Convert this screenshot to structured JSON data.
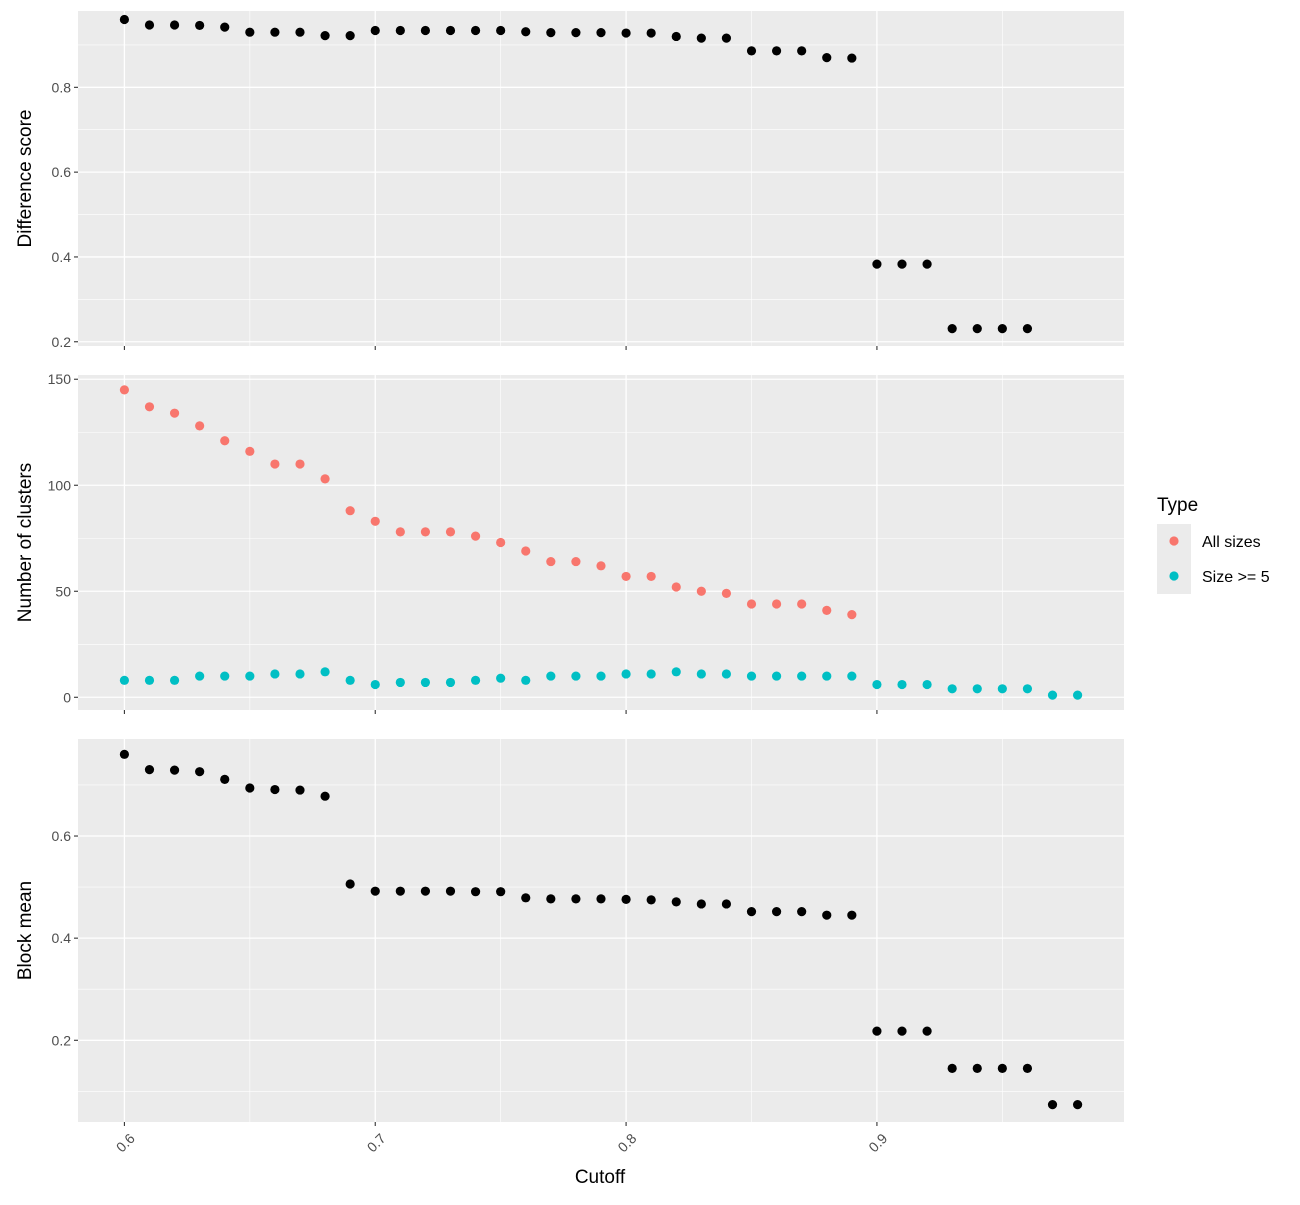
{
  "chart_data": {
    "type": "scatter",
    "xlabel": "Cutoff",
    "x_ticks": [
      0.6,
      0.7,
      0.8,
      0.9
    ],
    "xlim": [
      0.5815,
      0.9985
    ],
    "colors": {
      "panel_background": "#ebebeb",
      "grid": "#ffffff",
      "all_sizes": "#f8766d",
      "size_ge_5": "#00bfc4",
      "default_point": "#000000"
    },
    "legend": {
      "title": "Type",
      "position": "right",
      "items": [
        {
          "label": "All sizes",
          "color": "#f8766d"
        },
        {
          "label": "Size >= 5",
          "color": "#00bfc4"
        }
      ]
    },
    "panels": [
      {
        "ylabel": "Difference score",
        "ylim": [
          0.19,
          0.98
        ],
        "y_ticks": [
          0.2,
          0.4,
          0.6,
          0.8
        ],
        "series": [
          {
            "color": "#000000",
            "x": [
              0.6,
              0.61,
              0.62,
              0.63,
              0.64,
              0.65,
              0.66,
              0.67,
              0.68,
              0.69,
              0.7,
              0.71,
              0.72,
              0.73,
              0.74,
              0.75,
              0.76,
              0.77,
              0.78,
              0.79,
              0.8,
              0.81,
              0.82,
              0.83,
              0.84,
              0.85,
              0.86,
              0.87,
              0.88,
              0.89,
              0.9,
              0.91,
              0.92,
              0.93,
              0.94,
              0.95,
              0.96
            ],
            "y": [
              0.96,
              0.947,
              0.947,
              0.946,
              0.942,
              0.93,
              0.93,
              0.93,
              0.922,
              0.922,
              0.934,
              0.934,
              0.934,
              0.934,
              0.934,
              0.934,
              0.931,
              0.929,
              0.929,
              0.929,
              0.928,
              0.928,
              0.92,
              0.916,
              0.916,
              0.886,
              0.886,
              0.886,
              0.87,
              0.869,
              0.383,
              0.383,
              0.383,
              0.231,
              0.231,
              0.231,
              0.231
            ]
          }
        ]
      },
      {
        "ylabel": "Number of clusters",
        "ylim": [
          -6,
          152
        ],
        "y_ticks": [
          0,
          50,
          100,
          150
        ],
        "series": [
          {
            "name": "All sizes",
            "color": "#f8766d",
            "x": [
              0.6,
              0.61,
              0.62,
              0.63,
              0.64,
              0.65,
              0.66,
              0.67,
              0.68,
              0.69,
              0.7,
              0.71,
              0.72,
              0.73,
              0.74,
              0.75,
              0.76,
              0.77,
              0.78,
              0.79,
              0.8,
              0.81,
              0.82,
              0.83,
              0.84,
              0.85,
              0.86,
              0.87,
              0.88,
              0.89
            ],
            "y": [
              145,
              137,
              134,
              128,
              121,
              116,
              110,
              110,
              103,
              88,
              83,
              78,
              78,
              78,
              76,
              73,
              69,
              64,
              64,
              62,
              57,
              57,
              52,
              50,
              49,
              44,
              44,
              44,
              41,
              39
            ]
          },
          {
            "name": "Size >= 5",
            "color": "#00bfc4",
            "x": [
              0.6,
              0.61,
              0.62,
              0.63,
              0.64,
              0.65,
              0.66,
              0.67,
              0.68,
              0.69,
              0.7,
              0.71,
              0.72,
              0.73,
              0.74,
              0.75,
              0.76,
              0.77,
              0.78,
              0.79,
              0.8,
              0.81,
              0.82,
              0.83,
              0.84,
              0.85,
              0.86,
              0.87,
              0.88,
              0.89,
              0.9,
              0.91,
              0.92,
              0.93,
              0.94,
              0.95,
              0.96,
              0.97,
              0.98
            ],
            "y": [
              8,
              8,
              8,
              10,
              10,
              10,
              11,
              11,
              12,
              8,
              6,
              7,
              7,
              7,
              8,
              9,
              8,
              10,
              10,
              10,
              11,
              11,
              12,
              11,
              11,
              10,
              10,
              10,
              10,
              10,
              6,
              6,
              6,
              4,
              4,
              4,
              4,
              1,
              1
            ]
          }
        ]
      },
      {
        "ylabel": "Block mean",
        "ylim": [
          0.04,
          0.79
        ],
        "y_ticks": [
          0.2,
          0.4,
          0.6
        ],
        "series": [
          {
            "color": "#000000",
            "x": [
              0.6,
              0.61,
              0.62,
              0.63,
              0.64,
              0.65,
              0.66,
              0.67,
              0.68,
              0.69,
              0.7,
              0.71,
              0.72,
              0.73,
              0.74,
              0.75,
              0.76,
              0.77,
              0.78,
              0.79,
              0.8,
              0.81,
              0.82,
              0.83,
              0.84,
              0.85,
              0.86,
              0.87,
              0.88,
              0.89,
              0.9,
              0.91,
              0.92,
              0.93,
              0.94,
              0.95,
              0.96,
              0.97,
              0.98
            ],
            "y": [
              0.76,
              0.73,
              0.729,
              0.726,
              0.711,
              0.694,
              0.691,
              0.69,
              0.678,
              0.506,
              0.492,
              0.492,
              0.492,
              0.492,
              0.491,
              0.491,
              0.479,
              0.477,
              0.477,
              0.477,
              0.476,
              0.475,
              0.471,
              0.467,
              0.467,
              0.452,
              0.452,
              0.452,
              0.445,
              0.445,
              0.218,
              0.218,
              0.218,
              0.145,
              0.145,
              0.145,
              0.145,
              0.074,
              0.074
            ]
          }
        ]
      }
    ]
  }
}
